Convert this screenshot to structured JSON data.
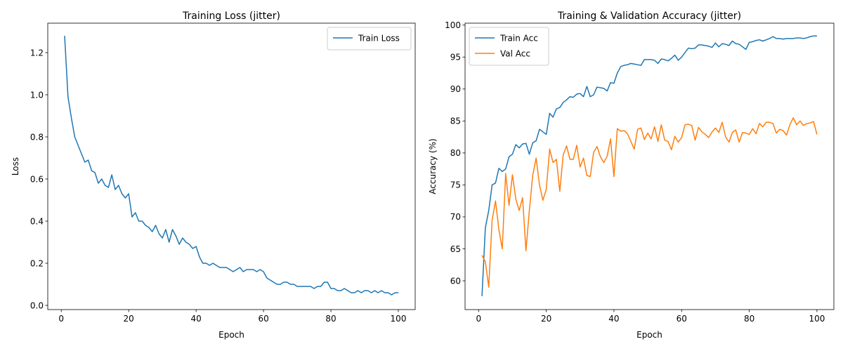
{
  "chart_data": [
    {
      "type": "line",
      "title": "Training Loss (jitter)",
      "xlabel": "Epoch",
      "ylabel": "Loss",
      "xlim": [
        -4,
        105
      ],
      "ylim": [
        -0.02,
        1.34
      ],
      "xticks": [
        0,
        20,
        40,
        60,
        80,
        100
      ],
      "yticks": [
        0.0,
        0.2,
        0.4,
        0.6,
        0.8,
        1.0,
        1.2
      ],
      "ytick_decimals": 1,
      "grid": false,
      "legend": "upper right",
      "series": [
        {
          "name": "Train Loss",
          "color": "#1f77b4",
          "x_start": 1,
          "values": [
            1.28,
            0.99,
            0.89,
            0.8,
            0.76,
            0.72,
            0.68,
            0.69,
            0.64,
            0.63,
            0.58,
            0.6,
            0.57,
            0.56,
            0.62,
            0.55,
            0.57,
            0.53,
            0.51,
            0.53,
            0.42,
            0.44,
            0.4,
            0.4,
            0.38,
            0.37,
            0.35,
            0.38,
            0.34,
            0.32,
            0.36,
            0.3,
            0.36,
            0.33,
            0.29,
            0.32,
            0.3,
            0.29,
            0.27,
            0.28,
            0.23,
            0.2,
            0.2,
            0.19,
            0.2,
            0.19,
            0.18,
            0.18,
            0.18,
            0.17,
            0.16,
            0.17,
            0.18,
            0.16,
            0.17,
            0.17,
            0.17,
            0.16,
            0.17,
            0.16,
            0.13,
            0.12,
            0.11,
            0.1,
            0.1,
            0.11,
            0.11,
            0.1,
            0.1,
            0.09,
            0.09,
            0.09,
            0.09,
            0.09,
            0.08,
            0.09,
            0.09,
            0.11,
            0.11,
            0.08,
            0.08,
            0.07,
            0.07,
            0.08,
            0.07,
            0.06,
            0.06,
            0.07,
            0.06,
            0.07,
            0.07,
            0.06,
            0.07,
            0.06,
            0.07,
            0.06,
            0.06,
            0.05,
            0.06,
            0.06
          ]
        }
      ]
    },
    {
      "type": "line",
      "title": "Training & Validation Accuracy (jitter)",
      "xlabel": "Epoch",
      "ylabel": "Accuracy (%)",
      "xlim": [
        -4,
        105
      ],
      "ylim": [
        55.5,
        100.3
      ],
      "xticks": [
        0,
        20,
        40,
        60,
        80,
        100
      ],
      "yticks": [
        60,
        65,
        70,
        75,
        80,
        85,
        90,
        95,
        100
      ],
      "ytick_decimals": 0,
      "grid": false,
      "legend": "upper left",
      "series": [
        {
          "name": "Train Acc",
          "color": "#1f77b4",
          "x_start": 1,
          "values": [
            57.6,
            68.3,
            71.0,
            75.0,
            75.3,
            77.6,
            77.1,
            77.5,
            79.4,
            79.8,
            81.3,
            80.8,
            81.4,
            81.5,
            79.8,
            81.6,
            81.9,
            83.7,
            83.3,
            82.9,
            86.2,
            85.6,
            86.9,
            87.1,
            87.9,
            88.3,
            88.8,
            88.7,
            89.2,
            89.3,
            88.8,
            90.4,
            88.8,
            89.1,
            90.3,
            90.2,
            90.1,
            89.7,
            91.0,
            90.9,
            92.5,
            93.5,
            93.7,
            93.8,
            94.0,
            93.9,
            93.8,
            93.7,
            94.6,
            94.6,
            94.6,
            94.5,
            94.0,
            94.7,
            94.6,
            94.4,
            94.8,
            95.3,
            94.5,
            95.0,
            95.7,
            96.4,
            96.3,
            96.4,
            96.9,
            96.9,
            96.8,
            96.7,
            96.5,
            97.2,
            96.6,
            97.1,
            97.0,
            96.8,
            97.5,
            97.1,
            97.0,
            96.6,
            96.2,
            97.3,
            97.4,
            97.6,
            97.7,
            97.5,
            97.7,
            97.9,
            98.2,
            97.9,
            97.9,
            97.8,
            97.9,
            97.9,
            97.9,
            98.0,
            98.0,
            97.9,
            98.0,
            98.2,
            98.3,
            98.3
          ]
        },
        {
          "name": "Val Acc",
          "color": "#ff7f0e",
          "x_start": 1,
          "values": [
            64.0,
            63.0,
            59.0,
            69.5,
            72.5,
            68.0,
            65.0,
            76.8,
            71.8,
            76.6,
            72.8,
            71.0,
            73.0,
            64.7,
            71.0,
            76.5,
            79.2,
            75.0,
            72.6,
            74.3,
            80.6,
            78.5,
            79.0,
            74.0,
            79.7,
            81.1,
            79.0,
            79.0,
            81.2,
            77.8,
            79.2,
            76.5,
            76.3,
            80.1,
            81.0,
            79.4,
            78.5,
            79.5,
            82.2,
            76.3,
            83.8,
            83.4,
            83.5,
            83.0,
            81.8,
            80.6,
            83.7,
            83.9,
            82.1,
            83.1,
            82.2,
            84.1,
            81.8,
            84.4,
            82.0,
            81.8,
            80.5,
            82.6,
            81.7,
            82.4,
            84.4,
            84.5,
            84.3,
            82.0,
            84.0,
            83.3,
            82.9,
            82.4,
            83.3,
            83.9,
            83.2,
            84.8,
            82.5,
            81.7,
            83.2,
            83.6,
            81.7,
            83.2,
            83.1,
            82.9,
            83.8,
            83.0,
            84.6,
            84.1,
            84.8,
            84.8,
            84.6,
            83.1,
            83.7,
            83.5,
            82.8,
            84.4,
            85.5,
            84.4,
            85.0,
            84.3,
            84.6,
            84.7,
            84.9,
            82.9
          ]
        }
      ]
    }
  ]
}
